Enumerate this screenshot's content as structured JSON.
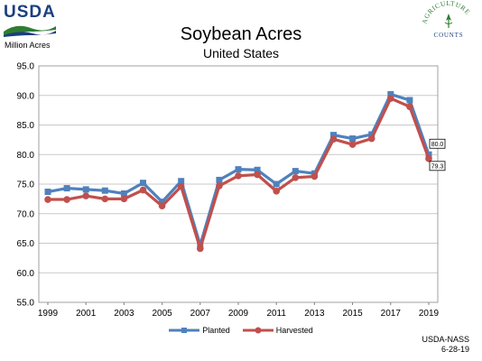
{
  "header": {
    "logo_text": "USDA",
    "seal_text": "AGRICULTURE COUNTS"
  },
  "footer": {
    "source": "USDA-NASS",
    "date": "6-28-19"
  },
  "chart_data": {
    "type": "line",
    "title": "Soybean Acres",
    "subtitle": "United States",
    "ylabel": "Million Acres",
    "xlabel": "",
    "ylim": [
      55.0,
      95.0
    ],
    "ytick_labels": [
      "55.0",
      "60.0",
      "65.0",
      "70.0",
      "75.0",
      "80.0",
      "85.0",
      "90.0",
      "95.0"
    ],
    "x": [
      1999,
      2000,
      2001,
      2002,
      2003,
      2004,
      2005,
      2006,
      2007,
      2008,
      2009,
      2010,
      2011,
      2012,
      2013,
      2014,
      2015,
      2016,
      2017,
      2018,
      2019
    ],
    "xtick_labels": [
      "1999",
      "2001",
      "2003",
      "2005",
      "2007",
      "2009",
      "2011",
      "2013",
      "2015",
      "2017",
      "2019"
    ],
    "grid": true,
    "legend_position": "bottom",
    "series": [
      {
        "name": "Planted",
        "color": "#4f81bd",
        "marker": "square",
        "values": [
          73.7,
          74.3,
          74.1,
          73.9,
          73.4,
          75.2,
          72.0,
          75.5,
          64.7,
          75.7,
          77.5,
          77.4,
          75.0,
          77.2,
          76.8,
          83.3,
          82.7,
          83.4,
          90.2,
          89.2,
          80.0
        ]
      },
      {
        "name": "Harvested",
        "color": "#c0504d",
        "marker": "circle",
        "values": [
          72.4,
          72.4,
          73.0,
          72.5,
          72.5,
          74.0,
          71.3,
          74.6,
          64.1,
          74.7,
          76.4,
          76.6,
          73.8,
          76.1,
          76.3,
          82.6,
          81.7,
          82.7,
          89.5,
          88.1,
          79.3
        ]
      }
    ],
    "annotations": [
      {
        "series": "Planted",
        "x": 2019,
        "label": "80.0"
      },
      {
        "series": "Harvested",
        "x": 2019,
        "label": "79.3"
      }
    ]
  }
}
